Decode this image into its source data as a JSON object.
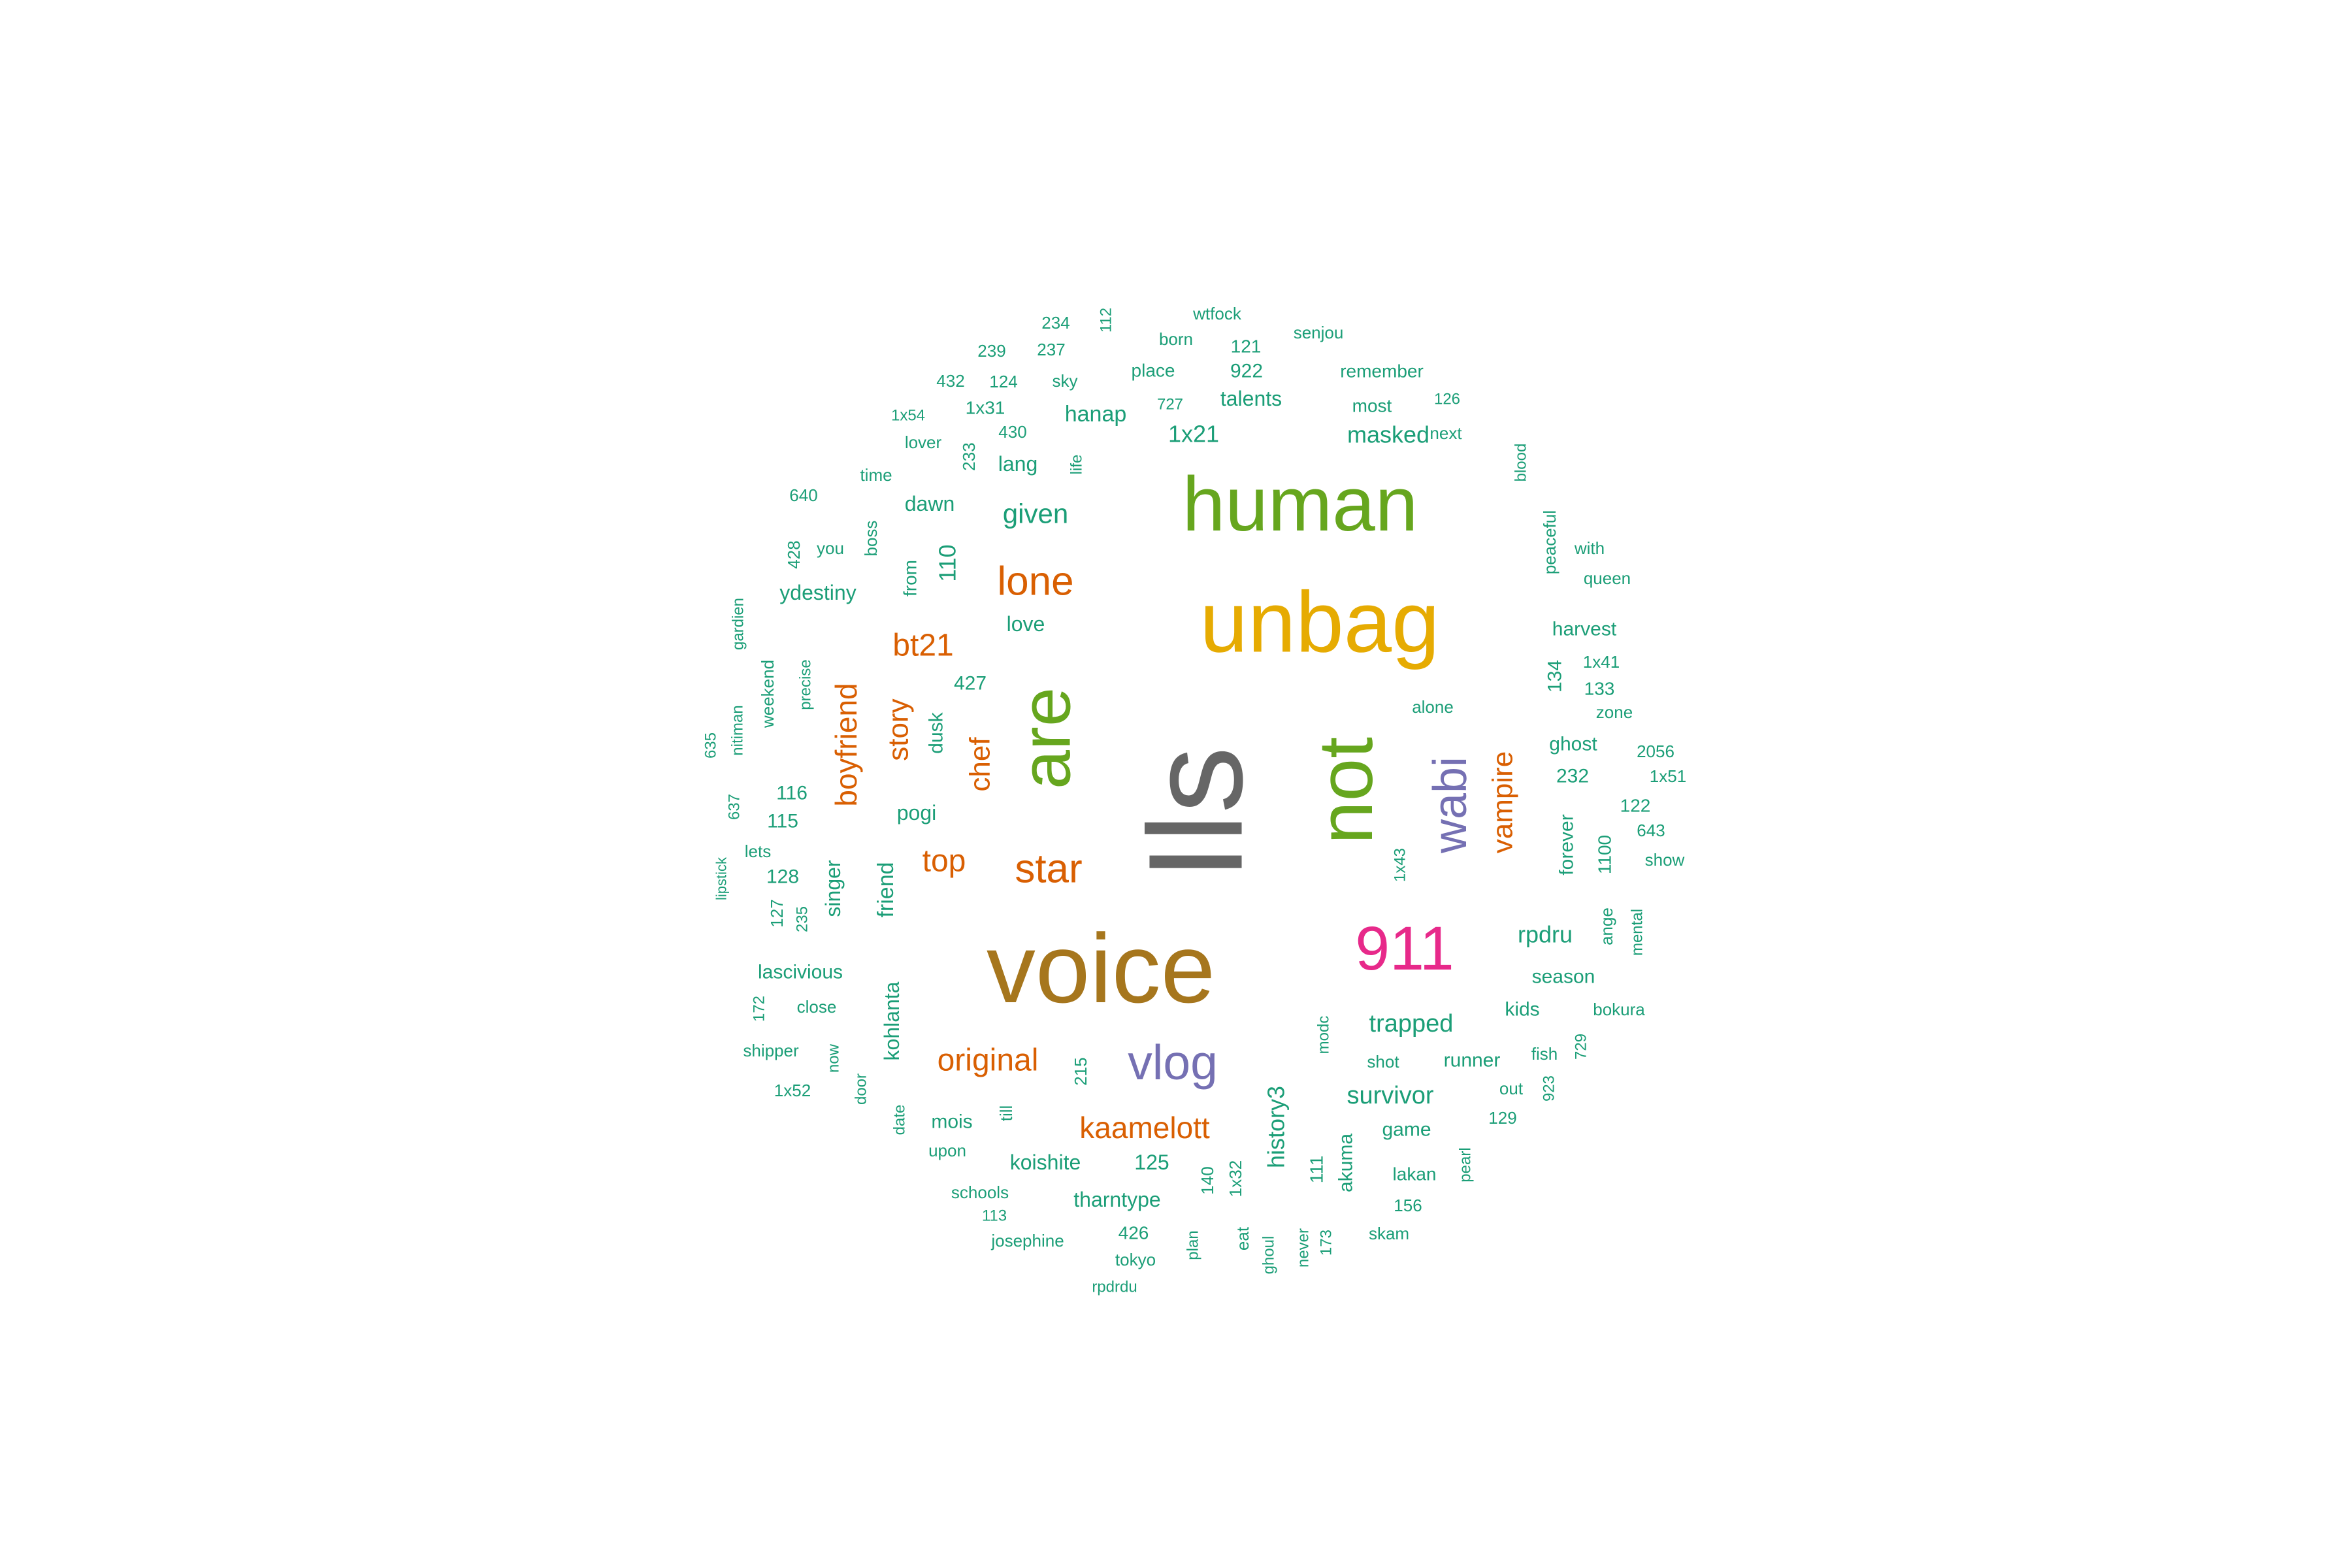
{
  "palette": {
    "teal": "#1b9e77",
    "orange": "#d95f02",
    "purple": "#7570b3",
    "pink": "#e7298a",
    "green": "#66a61e",
    "gold": "#e6ab02",
    "brown": "#a6761d",
    "gray": "#666666"
  },
  "words": [
    {
      "text": "Ils",
      "color": "gray",
      "rotated": true
    },
    {
      "text": "voice",
      "color": "brown",
      "rotated": false
    },
    {
      "text": "unbag",
      "color": "gold",
      "rotated": false
    },
    {
      "text": "human",
      "color": "green",
      "rotated": false
    },
    {
      "text": "not",
      "color": "green",
      "rotated": true
    },
    {
      "text": "are",
      "color": "green",
      "rotated": true
    },
    {
      "text": "911",
      "color": "pink",
      "rotated": false
    },
    {
      "text": "vlog",
      "color": "purple",
      "rotated": false
    },
    {
      "text": "wabi",
      "color": "purple",
      "rotated": true
    },
    {
      "text": "lone",
      "color": "orange",
      "rotated": false
    },
    {
      "text": "star",
      "color": "orange",
      "rotated": false
    },
    {
      "text": "original",
      "color": "orange",
      "rotated": false
    },
    {
      "text": "kaamelott",
      "color": "orange",
      "rotated": false
    },
    {
      "text": "bt21",
      "color": "orange",
      "rotated": false
    },
    {
      "text": "boyfriend",
      "color": "orange",
      "rotated": true
    },
    {
      "text": "story",
      "color": "orange",
      "rotated": true
    },
    {
      "text": "chef",
      "color": "orange",
      "rotated": true
    },
    {
      "text": "top",
      "color": "orange",
      "rotated": false
    },
    {
      "text": "vampire",
      "color": "orange",
      "rotated": true
    },
    {
      "text": "given",
      "color": "teal",
      "rotated": false
    },
    {
      "text": "1x21",
      "color": "teal",
      "rotated": false
    },
    {
      "text": "masked",
      "color": "teal",
      "rotated": false
    },
    {
      "text": "trapped",
      "color": "teal",
      "rotated": false
    },
    {
      "text": "survivor",
      "color": "teal",
      "rotated": false
    },
    {
      "text": "history3",
      "color": "teal",
      "rotated": true
    },
    {
      "text": "rpdru",
      "color": "teal",
      "rotated": false
    },
    {
      "text": "hanap",
      "color": "teal",
      "rotated": false
    },
    {
      "text": "talents",
      "color": "teal",
      "rotated": false
    },
    {
      "text": "922",
      "color": "teal",
      "rotated": false
    },
    {
      "text": "lang",
      "color": "teal",
      "rotated": false
    },
    {
      "text": "dawn",
      "color": "teal",
      "rotated": false
    },
    {
      "text": "110",
      "color": "teal",
      "rotated": true
    },
    {
      "text": "love",
      "color": "teal",
      "rotated": false
    },
    {
      "text": "ydestiny",
      "color": "teal",
      "rotated": false
    },
    {
      "text": "427",
      "color": "teal",
      "rotated": false
    },
    {
      "text": "dusk",
      "color": "teal",
      "rotated": true
    },
    {
      "text": "pogi",
      "color": "teal",
      "rotated": false
    },
    {
      "text": "116",
      "color": "teal",
      "rotated": false
    },
    {
      "text": "115",
      "color": "teal",
      "rotated": false
    },
    {
      "text": "128",
      "color": "teal",
      "rotated": false
    },
    {
      "text": "singer",
      "color": "teal",
      "rotated": true
    },
    {
      "text": "friend",
      "color": "teal",
      "rotated": true
    },
    {
      "text": "lascivious",
      "color": "teal",
      "rotated": false
    },
    {
      "text": "kohlanta",
      "color": "teal",
      "rotated": true
    },
    {
      "text": "mois",
      "color": "teal",
      "rotated": false
    },
    {
      "text": "koishite",
      "color": "teal",
      "rotated": false
    },
    {
      "text": "125",
      "color": "teal",
      "rotated": false
    },
    {
      "text": "tharntype",
      "color": "teal",
      "rotated": false
    },
    {
      "text": "426",
      "color": "teal",
      "rotated": false
    },
    {
      "text": "111",
      "color": "teal",
      "rotated": true
    },
    {
      "text": "akuma",
      "color": "teal",
      "rotated": true
    },
    {
      "text": "game",
      "color": "teal",
      "rotated": false
    },
    {
      "text": "runner",
      "color": "teal",
      "rotated": false
    },
    {
      "text": "kids",
      "color": "teal",
      "rotated": false
    },
    {
      "text": "season",
      "color": "teal",
      "rotated": false
    },
    {
      "text": "harvest",
      "color": "teal",
      "rotated": false
    },
    {
      "text": "134",
      "color": "teal",
      "rotated": true
    },
    {
      "text": "133",
      "color": "teal",
      "rotated": false
    },
    {
      "text": "ghost",
      "color": "teal",
      "rotated": false
    },
    {
      "text": "232",
      "color": "teal",
      "rotated": false
    },
    {
      "text": "forever",
      "color": "teal",
      "rotated": true
    },
    {
      "text": "1100",
      "color": "teal",
      "rotated": true
    },
    {
      "text": "peaceful",
      "color": "teal",
      "rotated": true
    },
    {
      "text": "remember",
      "color": "teal",
      "rotated": false
    },
    {
      "text": "most",
      "color": "teal",
      "rotated": false
    },
    {
      "text": "place",
      "color": "teal",
      "rotated": false
    },
    {
      "text": "121",
      "color": "teal",
      "rotated": false
    },
    {
      "text": "born",
      "color": "teal",
      "rotated": false
    },
    {
      "text": "wtfock",
      "color": "teal",
      "rotated": false
    },
    {
      "text": "senjou",
      "color": "teal",
      "rotated": false
    },
    {
      "text": "234",
      "color": "teal",
      "rotated": false
    },
    {
      "text": "112",
      "color": "teal",
      "rotated": true
    },
    {
      "text": "239",
      "color": "teal",
      "rotated": false
    },
    {
      "text": "237",
      "color": "teal",
      "rotated": false
    },
    {
      "text": "432",
      "color": "teal",
      "rotated": false
    },
    {
      "text": "124",
      "color": "teal",
      "rotated": false
    },
    {
      "text": "sky",
      "color": "teal",
      "rotated": false
    },
    {
      "text": "1x54",
      "color": "teal",
      "rotated": false
    },
    {
      "text": "1x31",
      "color": "teal",
      "rotated": false
    },
    {
      "text": "727",
      "color": "teal",
      "rotated": false
    },
    {
      "text": "126",
      "color": "teal",
      "rotated": false
    },
    {
      "text": "next",
      "color": "teal",
      "rotated": false
    },
    {
      "text": "lover",
      "color": "teal",
      "rotated": false
    },
    {
      "text": "430",
      "color": "teal",
      "rotated": false
    },
    {
      "text": "233",
      "color": "teal",
      "rotated": true
    },
    {
      "text": "life",
      "color": "teal",
      "rotated": true
    },
    {
      "text": "blood",
      "color": "teal",
      "rotated": true
    },
    {
      "text": "time",
      "color": "teal",
      "rotated": false
    },
    {
      "text": "640",
      "color": "teal",
      "rotated": false
    },
    {
      "text": "boss",
      "color": "teal",
      "rotated": true
    },
    {
      "text": "428",
      "color": "teal",
      "rotated": true
    },
    {
      "text": "you",
      "color": "teal",
      "rotated": false
    },
    {
      "text": "from",
      "color": "teal",
      "rotated": true
    },
    {
      "text": "with",
      "color": "teal",
      "rotated": false
    },
    {
      "text": "queen",
      "color": "teal",
      "rotated": false
    },
    {
      "text": "gardien",
      "color": "teal",
      "rotated": true
    },
    {
      "text": "1x41",
      "color": "teal",
      "rotated": false
    },
    {
      "text": "weekend",
      "color": "teal",
      "rotated": true
    },
    {
      "text": "precise",
      "color": "teal",
      "rotated": true
    },
    {
      "text": "alone",
      "color": "teal",
      "rotated": false
    },
    {
      "text": "zone",
      "color": "teal",
      "rotated": false
    },
    {
      "text": "nitiman",
      "color": "teal",
      "rotated": true
    },
    {
      "text": "635",
      "color": "teal",
      "rotated": true
    },
    {
      "text": "2056",
      "color": "teal",
      "rotated": false
    },
    {
      "text": "1x51",
      "color": "teal",
      "rotated": false
    },
    {
      "text": "637",
      "color": "teal",
      "rotated": true
    },
    {
      "text": "122",
      "color": "teal",
      "rotated": false
    },
    {
      "text": "643",
      "color": "teal",
      "rotated": false
    },
    {
      "text": "lets",
      "color": "teal",
      "rotated": false
    },
    {
      "text": "1x43",
      "color": "teal",
      "rotated": true
    },
    {
      "text": "show",
      "color": "teal",
      "rotated": false
    },
    {
      "text": "lipstick",
      "color": "teal",
      "rotated": true
    },
    {
      "text": "127",
      "color": "teal",
      "rotated": true
    },
    {
      "text": "235",
      "color": "teal",
      "rotated": true
    },
    {
      "text": "ange",
      "color": "teal",
      "rotated": true
    },
    {
      "text": "mental",
      "color": "teal",
      "rotated": true
    },
    {
      "text": "172",
      "color": "teal",
      "rotated": true
    },
    {
      "text": "close",
      "color": "teal",
      "rotated": false
    },
    {
      "text": "bokura",
      "color": "teal",
      "rotated": false
    },
    {
      "text": "modc",
      "color": "teal",
      "rotated": true
    },
    {
      "text": "shipper",
      "color": "teal",
      "rotated": false
    },
    {
      "text": "now",
      "color": "teal",
      "rotated": true
    },
    {
      "text": "shot",
      "color": "teal",
      "rotated": false
    },
    {
      "text": "fish",
      "color": "teal",
      "rotated": false
    },
    {
      "text": "729",
      "color": "teal",
      "rotated": true
    },
    {
      "text": "215",
      "color": "teal",
      "rotated": true
    },
    {
      "text": "1x52",
      "color": "teal",
      "rotated": false
    },
    {
      "text": "door",
      "color": "teal",
      "rotated": true
    },
    {
      "text": "out",
      "color": "teal",
      "rotated": false
    },
    {
      "text": "923",
      "color": "teal",
      "rotated": true
    },
    {
      "text": "date",
      "color": "teal",
      "rotated": true
    },
    {
      "text": "till",
      "color": "teal",
      "rotated": true
    },
    {
      "text": "129",
      "color": "teal",
      "rotated": false
    },
    {
      "text": "upon",
      "color": "teal",
      "rotated": false
    },
    {
      "text": "pearl",
      "color": "teal",
      "rotated": true
    },
    {
      "text": "140",
      "color": "teal",
      "rotated": true
    },
    {
      "text": "1x32",
      "color": "teal",
      "rotated": true
    },
    {
      "text": "lakan",
      "color": "teal",
      "rotated": false
    },
    {
      "text": "schools",
      "color": "teal",
      "rotated": false
    },
    {
      "text": "156",
      "color": "teal",
      "rotated": false
    },
    {
      "text": "113",
      "color": "teal",
      "rotated": false
    },
    {
      "text": "skam",
      "color": "teal",
      "rotated": false
    },
    {
      "text": "josephine",
      "color": "teal",
      "rotated": false
    },
    {
      "text": "plan",
      "color": "teal",
      "rotated": true
    },
    {
      "text": "eat",
      "color": "teal",
      "rotated": true
    },
    {
      "text": "never",
      "color": "teal",
      "rotated": true
    },
    {
      "text": "173",
      "color": "teal",
      "rotated": true
    },
    {
      "text": "tokyo",
      "color": "teal",
      "rotated": false
    },
    {
      "text": "ghoul",
      "color": "teal",
      "rotated": true
    },
    {
      "text": "rpdrdu",
      "color": "teal",
      "rotated": false
    }
  ]
}
